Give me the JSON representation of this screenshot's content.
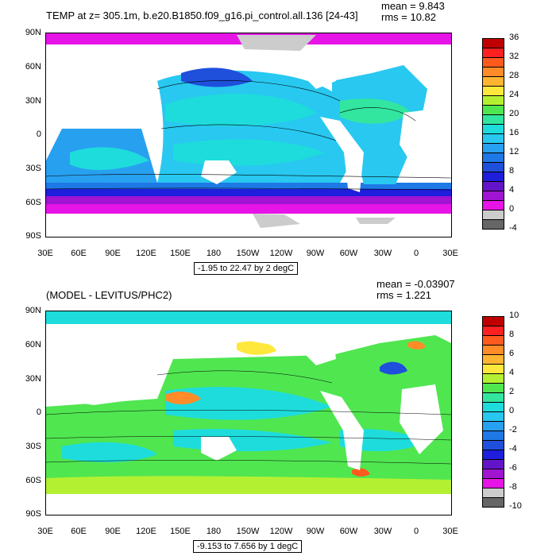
{
  "panels": [
    {
      "title": "TEMP at z= 305.1m, b.e20.B1850.f09_g16.pi_control.all.136 [24-43]",
      "mean_text": "mean = 9.843",
      "rms_text": "rms = 10.82",
      "info": "-1.95 to 22.47 by 2 degC",
      "colorbar_labels": [
        "36",
        "32",
        "28",
        "24",
        "20",
        "16",
        "12",
        "8",
        "4",
        "0",
        "-4"
      ],
      "colorbar_colors": [
        "#c00000",
        "#ff2020",
        "#ff5a1e",
        "#ff8c28",
        "#ffb432",
        "#ffe83c",
        "#b4f032",
        "#50e650",
        "#32e6a0",
        "#1edcdc",
        "#28c8f0",
        "#28a0f0",
        "#1e78e6",
        "#1e50dc",
        "#1e1edc",
        "#6414c8",
        "#a014d2",
        "#e614e6",
        "#cccccc",
        "#666666"
      ]
    },
    {
      "title": "(MODEL - LEVITUS/PHC2)",
      "mean_text": "mean = -0.03907",
      "rms_text": "rms = 1.221",
      "info": "-9.153 to 7.656 by 1 degC",
      "colorbar_labels": [
        "10",
        "8",
        "6",
        "4",
        "2",
        "0",
        "-2",
        "-4",
        "-6",
        "-8",
        "-10"
      ],
      "colorbar_colors": [
        "#c00000",
        "#ff2020",
        "#ff5a1e",
        "#ff8c28",
        "#ffb432",
        "#ffe83c",
        "#b4f032",
        "#50e650",
        "#32e6a0",
        "#1edcdc",
        "#28c8f0",
        "#28a0f0",
        "#1e78e6",
        "#1e50dc",
        "#1e1edc",
        "#6414c8",
        "#a014d2",
        "#e614e6",
        "#cccccc",
        "#666666"
      ]
    }
  ],
  "lat_labels": [
    "90N",
    "60N",
    "30N",
    "0",
    "30S",
    "60S",
    "90S"
  ],
  "lon_labels": [
    "30E",
    "60E",
    "90E",
    "120E",
    "150E",
    "180",
    "150W",
    "120W",
    "90W",
    "60W",
    "30W",
    "0",
    "30E"
  ]
}
